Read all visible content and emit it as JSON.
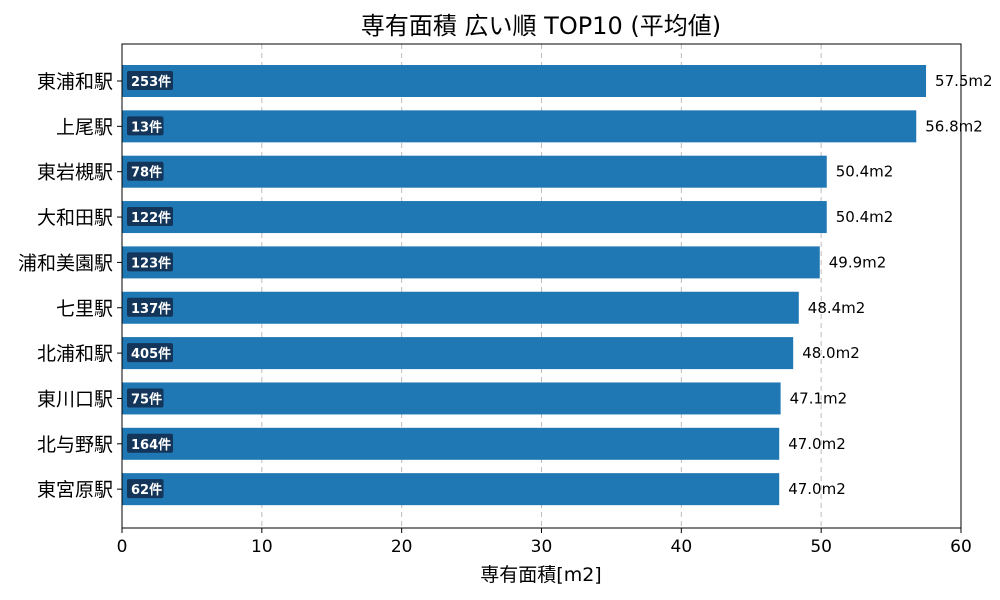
{
  "chart_data": {
    "type": "bar",
    "orientation": "horizontal",
    "title": "専有面積 広い順 TOP10 (平均値)",
    "xlabel": "専有面積[m2]",
    "ylabel": "",
    "xlim": [
      0,
      60
    ],
    "xticks": [
      0,
      10,
      20,
      30,
      40,
      50,
      60
    ],
    "grid": "x-dashed",
    "categories": [
      "東浦和駅",
      "上尾駅",
      "東岩槻駅",
      "大和田駅",
      "浦和美園駅",
      "七里駅",
      "北浦和駅",
      "東川口駅",
      "北与野駅",
      "東宮原駅"
    ],
    "values": [
      57.5,
      56.8,
      50.4,
      50.4,
      49.9,
      48.4,
      48.0,
      47.1,
      47.0,
      47.0
    ],
    "value_labels": [
      "57.5m2",
      "56.8m2",
      "50.4m2",
      "50.4m2",
      "49.9m2",
      "48.4m2",
      "48.0m2",
      "47.1m2",
      "47.0m2",
      "47.0m2"
    ],
    "counts": [
      "253件",
      "13件",
      "78件",
      "122件",
      "123件",
      "137件",
      "405件",
      "75件",
      "164件",
      "62件"
    ],
    "colors": {
      "bar": "#1f77b4",
      "count_box": "#13355a"
    }
  }
}
